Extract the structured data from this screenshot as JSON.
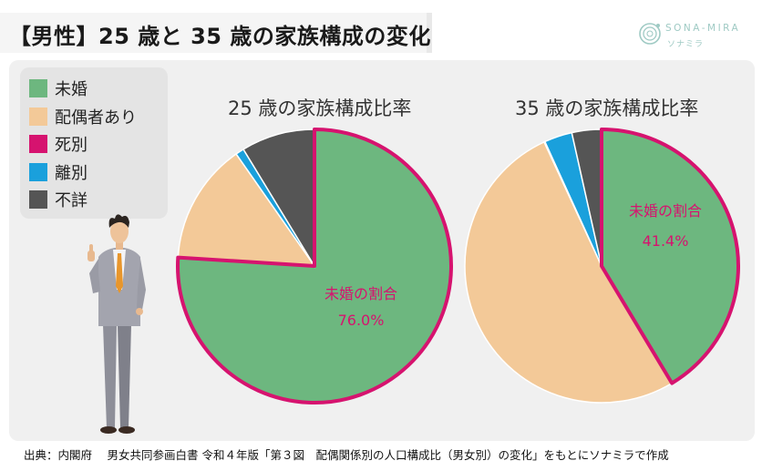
{
  "title": "【男性】25 歳と 35 歳の家族構成の変化",
  "logo": {
    "name": "SONA-MIRA",
    "kana": "ソナミラ"
  },
  "legend": [
    {
      "label": "未婚",
      "color": "#6db77f"
    },
    {
      "label": "配偶者あり",
      "color": "#f3c998"
    },
    {
      "label": "死別",
      "color": "#d6136f"
    },
    {
      "label": "離別",
      "color": "#1aa0dc"
    },
    {
      "label": "不詳",
      "color": "#555555"
    }
  ],
  "colors": {
    "highlight": "#d6136f",
    "label_text": "#d6136f"
  },
  "chart_data": [
    {
      "type": "pie",
      "title": "25 歳の家族構成比率",
      "categories": [
        "未婚",
        "配偶者あり",
        "死別",
        "離別",
        "不詳"
      ],
      "values": [
        76.0,
        14.3,
        0.0,
        1.0,
        8.7
      ],
      "highlight_label": "未婚の割合",
      "highlight_value": "76.0%"
    },
    {
      "type": "pie",
      "title": "35 歳の家族構成比率",
      "categories": [
        "未婚",
        "配偶者あり",
        "死別",
        "離別",
        "不詳"
      ],
      "values": [
        41.4,
        51.7,
        0.1,
        3.3,
        3.5
      ],
      "highlight_label": "未婚の割合",
      "highlight_value": "41.4%"
    }
  ],
  "source": "出典：内閣府　 男女共同参画白書 令和４年版「第３図　配偶関係別の人口構成比（男女別）の変化」をもとにソナミラで作成"
}
